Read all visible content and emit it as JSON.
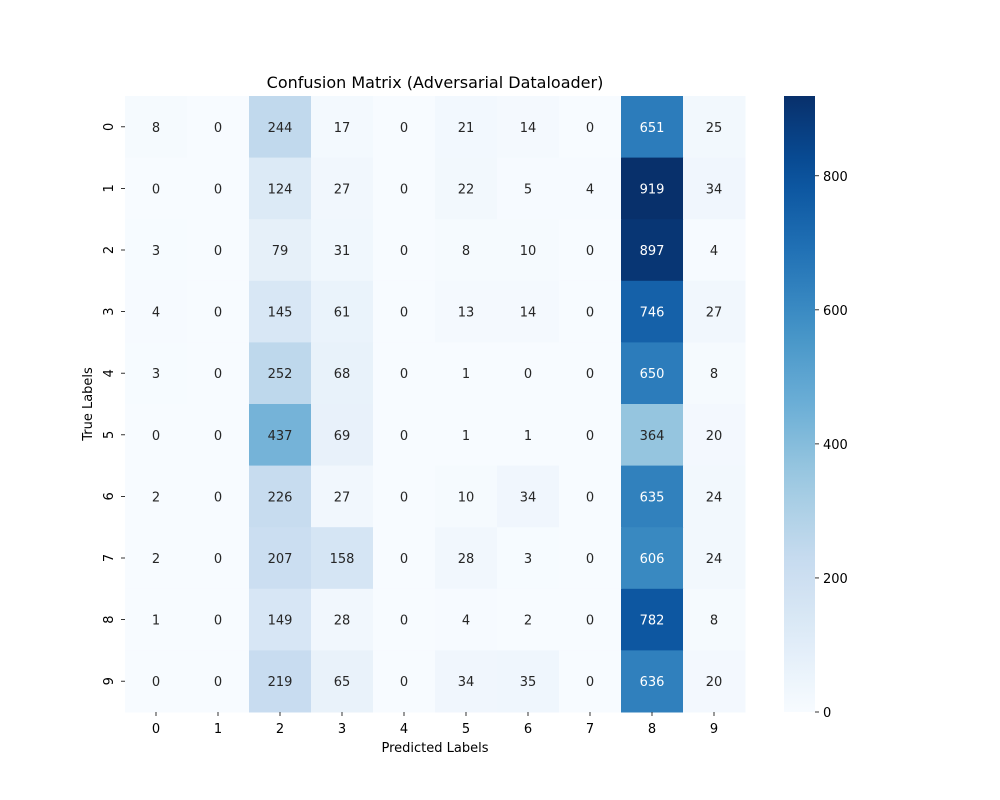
{
  "chart_data": {
    "type": "heatmap",
    "title": "Confusion Matrix (Adversarial Dataloader)",
    "xlabel": "Predicted Labels",
    "ylabel": "True Labels",
    "x_categories": [
      "0",
      "1",
      "2",
      "3",
      "4",
      "5",
      "6",
      "7",
      "8",
      "9"
    ],
    "y_categories": [
      "0",
      "1",
      "2",
      "3",
      "4",
      "5",
      "6",
      "7",
      "8",
      "9"
    ],
    "values": [
      [
        8,
        0,
        244,
        17,
        0,
        21,
        14,
        0,
        651,
        25
      ],
      [
        0,
        0,
        124,
        27,
        0,
        22,
        5,
        4,
        919,
        34
      ],
      [
        3,
        0,
        79,
        31,
        0,
        8,
        10,
        0,
        897,
        4
      ],
      [
        4,
        0,
        145,
        61,
        0,
        13,
        14,
        0,
        746,
        27
      ],
      [
        3,
        0,
        252,
        68,
        0,
        1,
        0,
        0,
        650,
        8
      ],
      [
        0,
        0,
        437,
        69,
        0,
        1,
        1,
        0,
        364,
        20
      ],
      [
        2,
        0,
        226,
        27,
        0,
        10,
        34,
        0,
        635,
        24
      ],
      [
        2,
        0,
        207,
        158,
        0,
        28,
        3,
        0,
        606,
        24
      ],
      [
        1,
        0,
        149,
        28,
        0,
        4,
        2,
        0,
        782,
        8
      ],
      [
        0,
        0,
        219,
        65,
        0,
        34,
        35,
        0,
        636,
        20
      ]
    ],
    "colorbar": {
      "ticks": [
        0,
        200,
        400,
        600,
        800
      ],
      "range": [
        0,
        919
      ],
      "colormap": "Blues"
    }
  }
}
